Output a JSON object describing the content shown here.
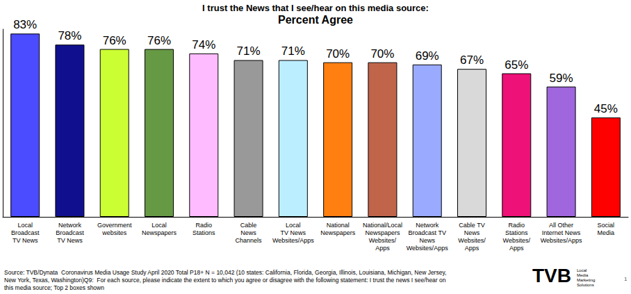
{
  "chart_data": {
    "type": "bar",
    "title": "I trust the News that I see/hear on this media source:",
    "subtitle": "Percent Agree",
    "categories": [
      "Local\nBroadcast\nTV News",
      "Network\nBroadcast\nTV News",
      "Government\nwebsites",
      "Local\nNewspapers",
      "Radio\nStations",
      "Cable\nNews\nChannels",
      "Local\nTV News\nWebsites/Apps",
      "National\nNewspapers",
      "National/Local\nNewspapers\nWebsites/\nApps",
      "Network\nBroadcast TV\nNews\nWebsites/Apps",
      "Cable TV\nNews\nWebsites/\nApps",
      "Radio\nStations\nWebsites/\nApps",
      "All Other\nInternet News\nWebsites/Apps",
      "Social\nMedia"
    ],
    "values": [
      83,
      78,
      76,
      76,
      74,
      71,
      71,
      70,
      70,
      69,
      67,
      65,
      59,
      45
    ],
    "value_labels": [
      "83%",
      "78%",
      "76%",
      "76%",
      "74%",
      "71%",
      "71%",
      "70%",
      "70%",
      "69%",
      "67%",
      "65%",
      "59%",
      "45%"
    ],
    "colors": [
      "#4b4bff",
      "#10108f",
      "#ccff33",
      "#669944",
      "#ffbbff",
      "#999999",
      "#bbeeff",
      "#ff7f11",
      "#c0654a",
      "#99aaff",
      "#d9d9d9",
      "#ee1177",
      "#a066dd",
      "#ff0000"
    ],
    "ylim": [
      0,
      85
    ],
    "grid": false,
    "data_labels": true,
    "tick_labels": "x",
    "annotations": [
      "Source: TVB/Dynata  Coronavirus Media Usage Study April 2020 Total P18+ N = 10,042 (10 states: California, Florida, Georgia, Illinois, Louisiana, Michigan, New Jersey,\nNew York, Texas, Washington)Q9:  For each source, please indicate the extent to which you agree or disagree with the following statement: I trust the news I see/hear on\nthis media source; Top 2 boxes shown",
      "TVB",
      "Local\nMedia\nMarketing\nSolutions",
      "1"
    ]
  }
}
